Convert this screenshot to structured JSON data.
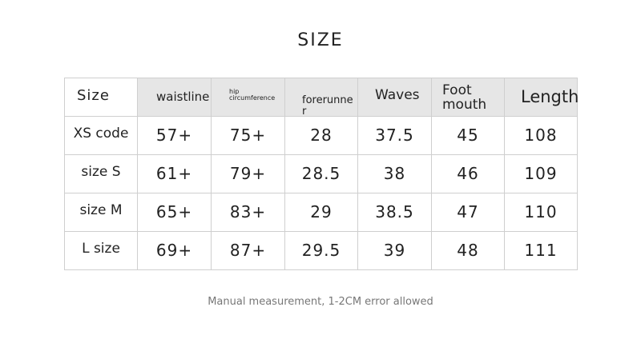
{
  "title": "SIZE",
  "headers": [
    "Size",
    "waistline",
    "hip circumference",
    "forerunne r",
    "Waves",
    "Foot mouth",
    "Length"
  ],
  "rows": [
    [
      "XS code",
      "57+",
      "75+",
      "28",
      "37.5",
      "45",
      "108"
    ],
    [
      "size S",
      "61+",
      "79+",
      "28.5",
      "38",
      "46",
      "109"
    ],
    [
      "size M",
      "65+",
      "83+",
      "29",
      "38.5",
      "47",
      "110"
    ],
    [
      "L size",
      "69+",
      "87+",
      "29.5",
      "39",
      "48",
      "111"
    ]
  ],
  "note": "Manual measurement, 1-2CM error allowed"
}
